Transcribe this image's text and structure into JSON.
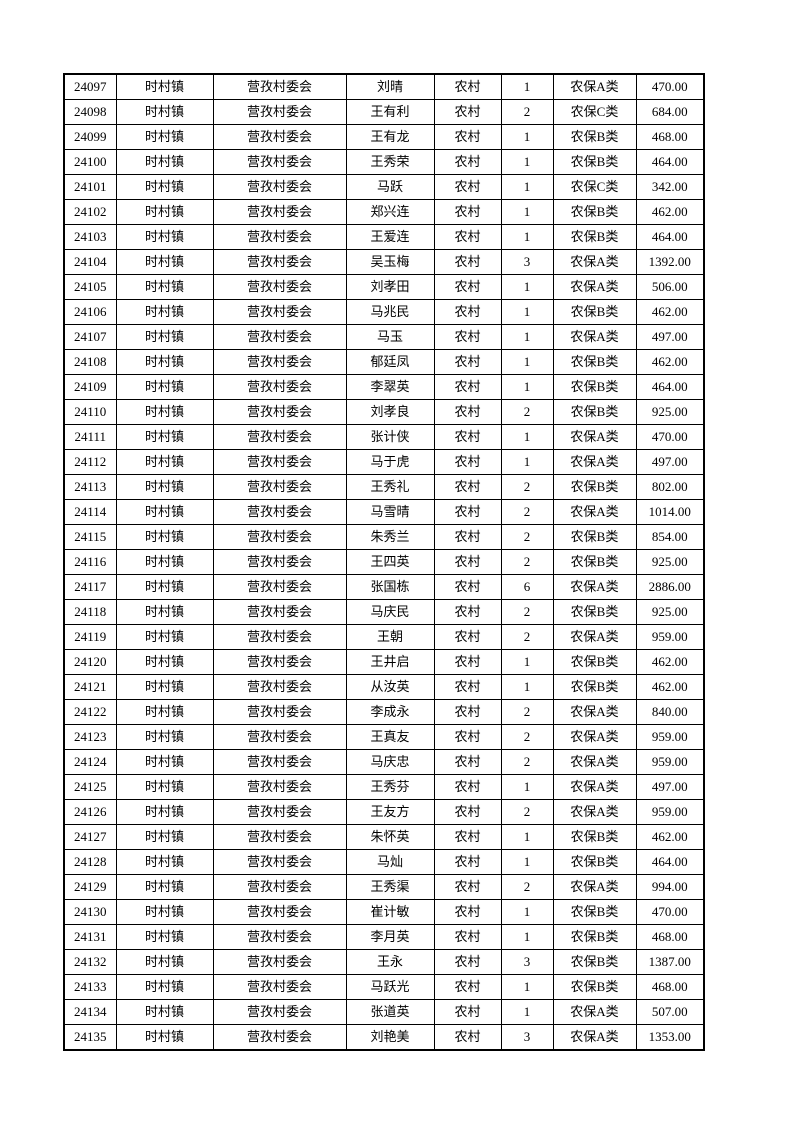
{
  "page": {
    "background_color": "#ffffff",
    "text_color": "#000000",
    "border_color": "#000000"
  },
  "table": {
    "column_names": [
      "serial-number",
      "town",
      "village-committee",
      "person-name",
      "residence-type",
      "person-count",
      "insurance-category",
      "amount"
    ],
    "rows": [
      [
        "24097",
        "时村镇",
        "营孜村委会",
        "刘晴",
        "农村",
        "1",
        "农保A类",
        "470.00"
      ],
      [
        "24098",
        "时村镇",
        "营孜村委会",
        "王有利",
        "农村",
        "2",
        "农保C类",
        "684.00"
      ],
      [
        "24099",
        "时村镇",
        "营孜村委会",
        "王有龙",
        "农村",
        "1",
        "农保B类",
        "468.00"
      ],
      [
        "24100",
        "时村镇",
        "营孜村委会",
        "王秀荣",
        "农村",
        "1",
        "农保B类",
        "464.00"
      ],
      [
        "24101",
        "时村镇",
        "营孜村委会",
        "马跃",
        "农村",
        "1",
        "农保C类",
        "342.00"
      ],
      [
        "24102",
        "时村镇",
        "营孜村委会",
        "郑兴连",
        "农村",
        "1",
        "农保B类",
        "462.00"
      ],
      [
        "24103",
        "时村镇",
        "营孜村委会",
        "王爱连",
        "农村",
        "1",
        "农保B类",
        "464.00"
      ],
      [
        "24104",
        "时村镇",
        "营孜村委会",
        "吴玉梅",
        "农村",
        "3",
        "农保A类",
        "1392.00"
      ],
      [
        "24105",
        "时村镇",
        "营孜村委会",
        "刘孝田",
        "农村",
        "1",
        "农保A类",
        "506.00"
      ],
      [
        "24106",
        "时村镇",
        "营孜村委会",
        "马兆民",
        "农村",
        "1",
        "农保B类",
        "462.00"
      ],
      [
        "24107",
        "时村镇",
        "营孜村委会",
        "马玉",
        "农村",
        "1",
        "农保A类",
        "497.00"
      ],
      [
        "24108",
        "时村镇",
        "营孜村委会",
        "郁廷凤",
        "农村",
        "1",
        "农保B类",
        "462.00"
      ],
      [
        "24109",
        "时村镇",
        "营孜村委会",
        "李翠英",
        "农村",
        "1",
        "农保B类",
        "464.00"
      ],
      [
        "24110",
        "时村镇",
        "营孜村委会",
        "刘孝良",
        "农村",
        "2",
        "农保B类",
        "925.00"
      ],
      [
        "24111",
        "时村镇",
        "营孜村委会",
        "张计侠",
        "农村",
        "1",
        "农保A类",
        "470.00"
      ],
      [
        "24112",
        "时村镇",
        "营孜村委会",
        "马于虎",
        "农村",
        "1",
        "农保A类",
        "497.00"
      ],
      [
        "24113",
        "时村镇",
        "营孜村委会",
        "王秀礼",
        "农村",
        "2",
        "农保B类",
        "802.00"
      ],
      [
        "24114",
        "时村镇",
        "营孜村委会",
        "马雪晴",
        "农村",
        "2",
        "农保A类",
        "1014.00"
      ],
      [
        "24115",
        "时村镇",
        "营孜村委会",
        "朱秀兰",
        "农村",
        "2",
        "农保B类",
        "854.00"
      ],
      [
        "24116",
        "时村镇",
        "营孜村委会",
        "王四英",
        "农村",
        "2",
        "农保B类",
        "925.00"
      ],
      [
        "24117",
        "时村镇",
        "营孜村委会",
        "张国栋",
        "农村",
        "6",
        "农保A类",
        "2886.00"
      ],
      [
        "24118",
        "时村镇",
        "营孜村委会",
        "马庆民",
        "农村",
        "2",
        "农保B类",
        "925.00"
      ],
      [
        "24119",
        "时村镇",
        "营孜村委会",
        "王朝",
        "农村",
        "2",
        "农保A类",
        "959.00"
      ],
      [
        "24120",
        "时村镇",
        "营孜村委会",
        "王井启",
        "农村",
        "1",
        "农保B类",
        "462.00"
      ],
      [
        "24121",
        "时村镇",
        "营孜村委会",
        "从汝英",
        "农村",
        "1",
        "农保B类",
        "462.00"
      ],
      [
        "24122",
        "时村镇",
        "营孜村委会",
        "李成永",
        "农村",
        "2",
        "农保A类",
        "840.00"
      ],
      [
        "24123",
        "时村镇",
        "营孜村委会",
        "王真友",
        "农村",
        "2",
        "农保A类",
        "959.00"
      ],
      [
        "24124",
        "时村镇",
        "营孜村委会",
        "马庆忠",
        "农村",
        "2",
        "农保A类",
        "959.00"
      ],
      [
        "24125",
        "时村镇",
        "营孜村委会",
        "王秀芬",
        "农村",
        "1",
        "农保A类",
        "497.00"
      ],
      [
        "24126",
        "时村镇",
        "营孜村委会",
        "王友方",
        "农村",
        "2",
        "农保A类",
        "959.00"
      ],
      [
        "24127",
        "时村镇",
        "营孜村委会",
        "朱怀英",
        "农村",
        "1",
        "农保B类",
        "462.00"
      ],
      [
        "24128",
        "时村镇",
        "营孜村委会",
        "马灿",
        "农村",
        "1",
        "农保B类",
        "464.00"
      ],
      [
        "24129",
        "时村镇",
        "营孜村委会",
        "王秀渠",
        "农村",
        "2",
        "农保A类",
        "994.00"
      ],
      [
        "24130",
        "时村镇",
        "营孜村委会",
        "崔计敏",
        "农村",
        "1",
        "农保B类",
        "470.00"
      ],
      [
        "24131",
        "时村镇",
        "营孜村委会",
        "李月英",
        "农村",
        "1",
        "农保B类",
        "468.00"
      ],
      [
        "24132",
        "时村镇",
        "营孜村委会",
        "王永",
        "农村",
        "3",
        "农保B类",
        "1387.00"
      ],
      [
        "24133",
        "时村镇",
        "营孜村委会",
        "马跃光",
        "农村",
        "1",
        "农保B类",
        "468.00"
      ],
      [
        "24134",
        "时村镇",
        "营孜村委会",
        "张道英",
        "农村",
        "1",
        "农保A类",
        "507.00"
      ],
      [
        "24135",
        "时村镇",
        "营孜村委会",
        "刘艳美",
        "农村",
        "3",
        "农保A类",
        "1353.00"
      ]
    ]
  }
}
